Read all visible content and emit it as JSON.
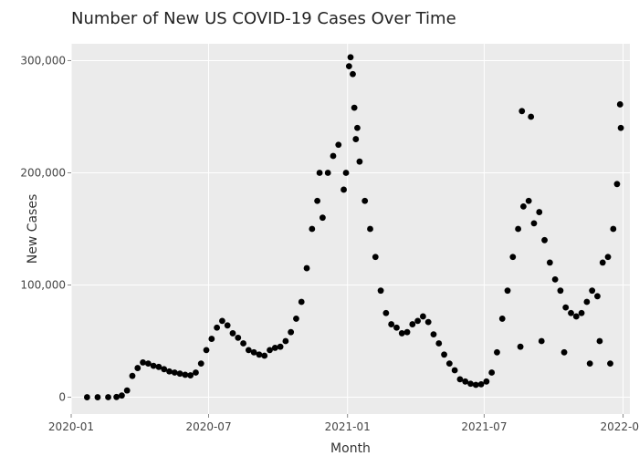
{
  "chart_data": {
    "type": "scatter",
    "title": "Number of New US COVID-19 Cases Over Time",
    "xlabel": "Month",
    "ylabel": "New Cases",
    "xlim": [
      "2020-01-01",
      "2022-01-10"
    ],
    "ylim": [
      -15000,
      315000
    ],
    "x_ticks": [
      {
        "value": "2020-01-01",
        "label": "2020-01"
      },
      {
        "value": "2020-07-01",
        "label": "2020-07"
      },
      {
        "value": "2021-01-01",
        "label": "2021-01"
      },
      {
        "value": "2021-07-01",
        "label": "2021-07"
      },
      {
        "value": "2022-01-01",
        "label": "2022-01"
      }
    ],
    "y_ticks": [
      {
        "value": 0,
        "label": "0"
      },
      {
        "value": 100000,
        "label": "100,000"
      },
      {
        "value": 200000,
        "label": "200,000"
      },
      {
        "value": 300000,
        "label": "300,000"
      }
    ],
    "grid": true,
    "legend": "none",
    "colors": {
      "panel": "#ebebeb",
      "point": "#000000",
      "grid": "#ffffff"
    },
    "series": [
      {
        "points": [
          [
            "2020-01-22",
            0
          ],
          [
            "2020-02-05",
            0
          ],
          [
            "2020-02-19",
            50
          ],
          [
            "2020-03-01",
            200
          ],
          [
            "2020-03-08",
            1500
          ],
          [
            "2020-03-15",
            6000
          ],
          [
            "2020-03-22",
            19000
          ],
          [
            "2020-03-29",
            26000
          ],
          [
            "2020-04-05",
            31000
          ],
          [
            "2020-04-12",
            30000
          ],
          [
            "2020-04-19",
            28000
          ],
          [
            "2020-04-26",
            27000
          ],
          [
            "2020-05-03",
            25000
          ],
          [
            "2020-05-10",
            23000
          ],
          [
            "2020-05-17",
            22000
          ],
          [
            "2020-05-24",
            21000
          ],
          [
            "2020-05-31",
            20000
          ],
          [
            "2020-06-07",
            19500
          ],
          [
            "2020-06-14",
            22000
          ],
          [
            "2020-06-21",
            30000
          ],
          [
            "2020-06-28",
            42000
          ],
          [
            "2020-07-05",
            52000
          ],
          [
            "2020-07-12",
            62000
          ],
          [
            "2020-07-19",
            68000
          ],
          [
            "2020-07-26",
            64000
          ],
          [
            "2020-08-02",
            57000
          ],
          [
            "2020-08-09",
            53000
          ],
          [
            "2020-08-16",
            48000
          ],
          [
            "2020-08-23",
            42000
          ],
          [
            "2020-08-30",
            40000
          ],
          [
            "2020-09-06",
            38000
          ],
          [
            "2020-09-13",
            37000
          ],
          [
            "2020-09-20",
            42000
          ],
          [
            "2020-09-27",
            44000
          ],
          [
            "2020-10-04",
            45000
          ],
          [
            "2020-10-11",
            50000
          ],
          [
            "2020-10-18",
            58000
          ],
          [
            "2020-10-25",
            70000
          ],
          [
            "2020-11-01",
            85000
          ],
          [
            "2020-11-08",
            115000
          ],
          [
            "2020-11-15",
            150000
          ],
          [
            "2020-11-22",
            175000
          ],
          [
            "2020-11-29",
            160000
          ],
          [
            "2020-12-06",
            200000
          ],
          [
            "2020-12-13",
            215000
          ],
          [
            "2020-12-20",
            225000
          ],
          [
            "2020-12-27",
            185000
          ],
          [
            "2021-01-03",
            295000
          ],
          [
            "2021-01-05",
            303000
          ],
          [
            "2021-01-08",
            288000
          ],
          [
            "2021-01-10",
            258000
          ],
          [
            "2021-01-14",
            240000
          ],
          [
            "2021-01-17",
            210000
          ],
          [
            "2021-01-24",
            175000
          ],
          [
            "2021-01-31",
            150000
          ],
          [
            "2021-02-07",
            125000
          ],
          [
            "2021-02-14",
            95000
          ],
          [
            "2021-02-21",
            75000
          ],
          [
            "2021-02-28",
            65000
          ],
          [
            "2021-03-07",
            62000
          ],
          [
            "2021-03-14",
            57000
          ],
          [
            "2021-03-21",
            58000
          ],
          [
            "2021-03-28",
            65000
          ],
          [
            "2021-04-04",
            68000
          ],
          [
            "2021-04-11",
            72000
          ],
          [
            "2021-04-18",
            67000
          ],
          [
            "2021-04-25",
            56000
          ],
          [
            "2021-05-02",
            48000
          ],
          [
            "2021-05-09",
            38000
          ],
          [
            "2021-05-16",
            30000
          ],
          [
            "2021-05-23",
            24000
          ],
          [
            "2021-05-30",
            16000
          ],
          [
            "2021-06-06",
            14000
          ],
          [
            "2021-06-13",
            12000
          ],
          [
            "2021-06-20",
            11000
          ],
          [
            "2021-06-27",
            11500
          ],
          [
            "2021-07-04",
            14000
          ],
          [
            "2021-07-11",
            22000
          ],
          [
            "2021-07-18",
            40000
          ],
          [
            "2021-07-25",
            70000
          ],
          [
            "2021-08-01",
            95000
          ],
          [
            "2021-08-08",
            125000
          ],
          [
            "2021-08-15",
            150000
          ],
          [
            "2021-08-22",
            170000
          ],
          [
            "2021-08-29",
            175000
          ],
          [
            "2021-09-05",
            155000
          ],
          [
            "2021-09-12",
            165000
          ],
          [
            "2021-09-19",
            140000
          ],
          [
            "2021-09-26",
            120000
          ],
          [
            "2021-10-03",
            105000
          ],
          [
            "2021-10-10",
            95000
          ],
          [
            "2021-10-17",
            80000
          ],
          [
            "2021-10-24",
            75000
          ],
          [
            "2021-10-31",
            72000
          ],
          [
            "2021-11-07",
            75000
          ],
          [
            "2021-11-14",
            85000
          ],
          [
            "2021-11-21",
            95000
          ],
          [
            "2021-11-28",
            90000
          ],
          [
            "2021-12-05",
            120000
          ],
          [
            "2021-12-12",
            125000
          ],
          [
            "2021-12-19",
            150000
          ],
          [
            "2021-12-24",
            190000
          ],
          [
            "2021-12-28",
            261000
          ],
          [
            "2020-12-30",
            200000
          ],
          [
            "2021-01-12",
            230000
          ],
          [
            "2021-08-20",
            255000
          ],
          [
            "2021-09-01",
            250000
          ],
          [
            "2021-12-29",
            240000
          ],
          [
            "2020-11-25",
            200000
          ],
          [
            "2021-08-18",
            45000
          ],
          [
            "2021-09-15",
            50000
          ],
          [
            "2021-10-15",
            40000
          ],
          [
            "2021-11-18",
            30000
          ],
          [
            "2021-12-01",
            50000
          ],
          [
            "2021-12-15",
            30000
          ]
        ]
      }
    ]
  }
}
